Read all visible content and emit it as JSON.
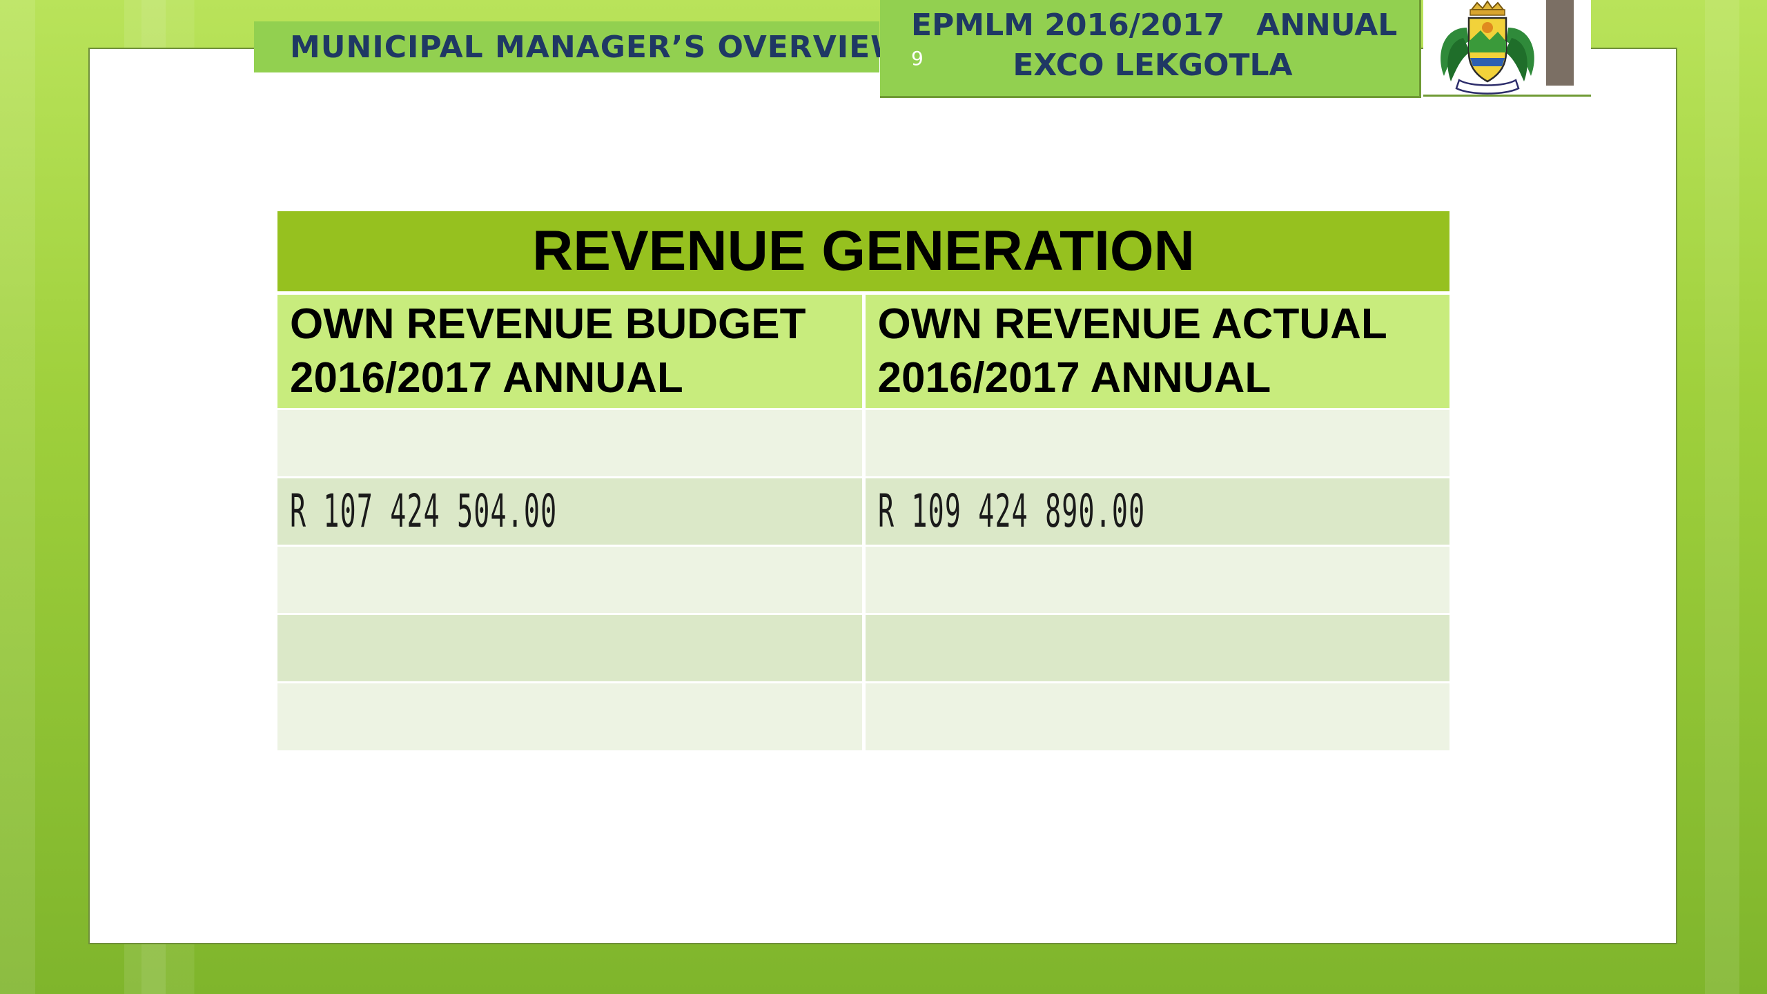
{
  "header": {
    "section_title": "MUNICIPAL MANAGER’S OVERVIEW",
    "page_number": "9",
    "event_title_line1": "EPMLM 2016/2017   ANNUAL",
    "event_title_line2": "EXCO LEKGOTLA",
    "logo_icon": "municipal-coat-of-arms"
  },
  "table": {
    "title": "REVENUE GENERATION",
    "columns": [
      {
        "line1": "OWN REVENUE BUDGET",
        "line2": "2016/2017 ANNUAL"
      },
      {
        "line1": "OWN REVENUE ACTUAL",
        "line2": "2016/2017 ANNUAL"
      }
    ],
    "rows": [
      [
        "",
        ""
      ],
      [
        "R 107 424 504.00",
        "R 109 424 890.00"
      ],
      [
        "",
        ""
      ],
      [
        "",
        ""
      ],
      [
        "",
        ""
      ]
    ]
  },
  "colors": {
    "header_green": "#92d050",
    "title_green": "#96c11f",
    "column_head_green": "#c8ec7d",
    "header_text": "#1f3864"
  }
}
